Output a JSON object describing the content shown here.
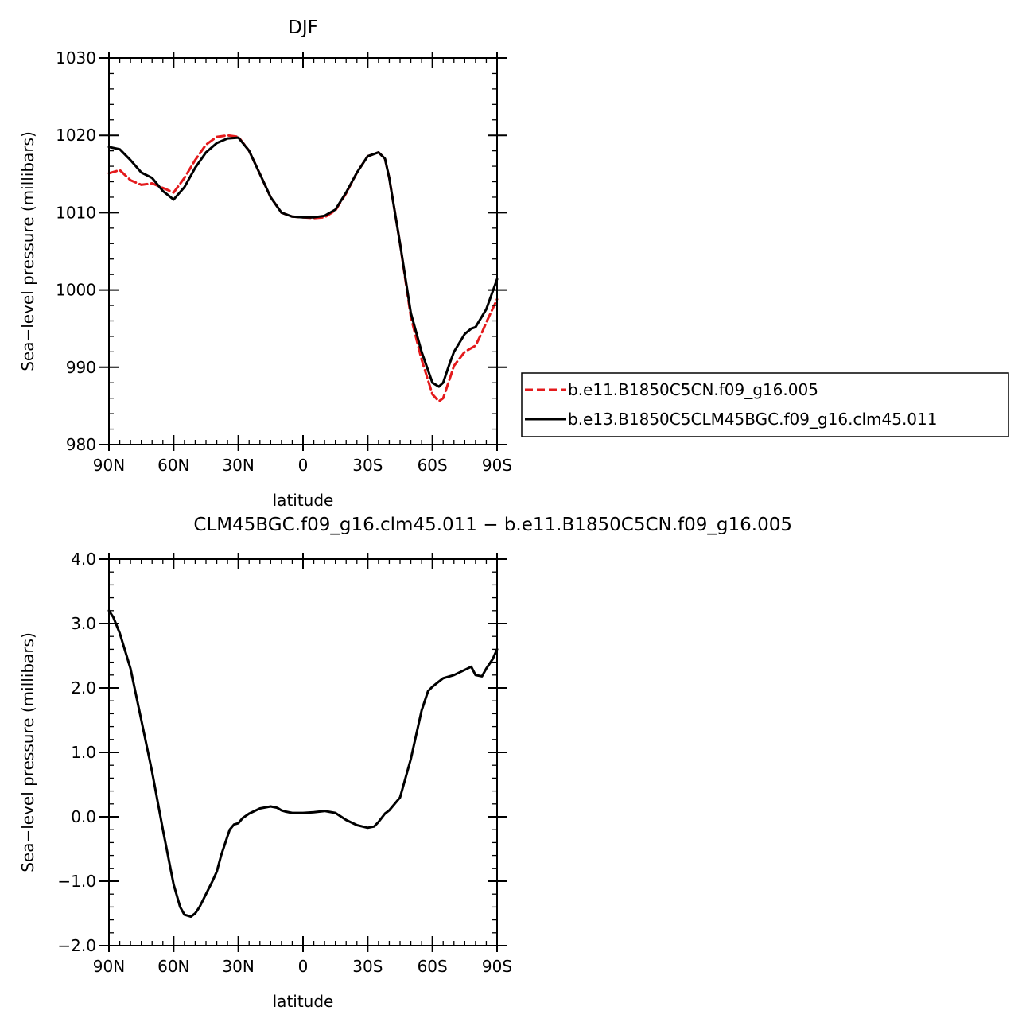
{
  "colors": {
    "series_case": "#e41a1c",
    "series_base": "#000000",
    "axis": "#000000"
  },
  "chart_data": [
    {
      "type": "line",
      "title": "DJF",
      "xlabel": "latitude",
      "ylabel": "Sea−level pressure (millibars)",
      "xlim": [
        90,
        -90
      ],
      "ylim": [
        980,
        1030
      ],
      "xticks": [
        {
          "value": 90,
          "label": "90N"
        },
        {
          "value": 60,
          "label": "60N"
        },
        {
          "value": 30,
          "label": "30N"
        },
        {
          "value": 0,
          "label": "0"
        },
        {
          "value": -30,
          "label": "30S"
        },
        {
          "value": -60,
          "label": "60S"
        },
        {
          "value": -90,
          "label": "90S"
        }
      ],
      "yticks": [
        {
          "value": 1030,
          "label": "1030"
        },
        {
          "value": 1020,
          "label": "1020"
        },
        {
          "value": 1010,
          "label": "1010"
        },
        {
          "value": 1000,
          "label": "1000"
        },
        {
          "value": 990,
          "label": "990"
        },
        {
          "value": 980,
          "label": "980"
        }
      ],
      "legend_position": "right",
      "series": [
        {
          "name": "b.e11.B1850C5CN.f09_g16.005",
          "color": "#e41a1c",
          "dash": "dashed",
          "x": [
            90,
            85,
            80,
            75,
            70,
            65,
            60,
            55,
            50,
            45,
            40,
            35,
            30,
            25,
            20,
            15,
            10,
            5,
            0,
            -5,
            -10,
            -15,
            -20,
            -25,
            -30,
            -35,
            -38,
            -40,
            -45,
            -50,
            -55,
            -60,
            -63,
            -65,
            -68,
            -70,
            -75,
            -80,
            -83,
            -85,
            -90
          ],
          "y": [
            1015.1,
            1015.5,
            1014.2,
            1013.6,
            1013.8,
            1013.2,
            1012.6,
            1014.5,
            1016.8,
            1018.8,
            1019.8,
            1020.0,
            1019.8,
            1018.0,
            1015.0,
            1012.0,
            1010.0,
            1009.5,
            1009.4,
            1009.3,
            1009.4,
            1010.3,
            1012.5,
            1015.2,
            1017.3,
            1017.8,
            1017.0,
            1014.5,
            1006.0,
            996.5,
            991.0,
            986.5,
            985.6,
            986.0,
            988.5,
            990.2,
            992.0,
            992.8,
            994.5,
            995.8,
            998.8
          ]
        },
        {
          "name": "b.e13.B1850C5CLM45BGC.f09_g16.clm45.011",
          "color": "#000000",
          "dash": "solid",
          "x": [
            90,
            85,
            80,
            75,
            70,
            65,
            60,
            55,
            50,
            45,
            40,
            35,
            30,
            25,
            20,
            15,
            10,
            5,
            0,
            -5,
            -10,
            -15,
            -20,
            -25,
            -30,
            -35,
            -38,
            -40,
            -45,
            -50,
            -55,
            -60,
            -63,
            -65,
            -68,
            -70,
            -75,
            -78,
            -80,
            -85,
            -90
          ],
          "y": [
            1018.5,
            1018.2,
            1016.8,
            1015.2,
            1014.5,
            1012.8,
            1011.7,
            1013.3,
            1015.8,
            1017.8,
            1019.0,
            1019.6,
            1019.7,
            1018.0,
            1015.0,
            1012.0,
            1010.0,
            1009.5,
            1009.4,
            1009.4,
            1009.6,
            1010.4,
            1012.6,
            1015.2,
            1017.3,
            1017.8,
            1017.0,
            1014.5,
            1006.0,
            997.0,
            992.0,
            988.0,
            987.5,
            988.0,
            990.5,
            992.0,
            994.3,
            995.0,
            995.2,
            997.5,
            1001.4
          ]
        }
      ]
    },
    {
      "type": "line",
      "title": "CLM45BGC.f09_g16.clm45.011 − b.e11.B1850C5CN.f09_g16.005",
      "xlabel": "latitude",
      "ylabel": "Sea−level pressure (millibars)",
      "xlim": [
        90,
        -90
      ],
      "ylim": [
        -2.0,
        4.0
      ],
      "xticks": [
        {
          "value": 90,
          "label": "90N"
        },
        {
          "value": 60,
          "label": "60N"
        },
        {
          "value": 30,
          "label": "30N"
        },
        {
          "value": 0,
          "label": "0"
        },
        {
          "value": -30,
          "label": "30S"
        },
        {
          "value": -60,
          "label": "60S"
        },
        {
          "value": -90,
          "label": "90S"
        }
      ],
      "yticks": [
        {
          "value": 4.0,
          "label": "4.0"
        },
        {
          "value": 3.0,
          "label": "3.0"
        },
        {
          "value": 2.0,
          "label": "2.0"
        },
        {
          "value": 1.0,
          "label": "1.0"
        },
        {
          "value": 0.0,
          "label": "0.0"
        },
        {
          "value": -1.0,
          "label": "−1.0"
        },
        {
          "value": -2.0,
          "label": "−2.0"
        }
      ],
      "series": [
        {
          "color": "#000000",
          "dash": "solid",
          "x": [
            90,
            88,
            85,
            80,
            75,
            70,
            65,
            60,
            57,
            55,
            52,
            50,
            48,
            45,
            42,
            40,
            38,
            36,
            34,
            32,
            30,
            28,
            25,
            20,
            15,
            12,
            10,
            8,
            5,
            0,
            -5,
            -10,
            -15,
            -20,
            -25,
            -30,
            -33,
            -35,
            -38,
            -40,
            -45,
            -50,
            -55,
            -58,
            -60,
            -63,
            -65,
            -70,
            -75,
            -78,
            -80,
            -83,
            -85,
            -88,
            -90
          ],
          "y": [
            3.2,
            3.1,
            2.85,
            2.3,
            1.5,
            0.7,
            -0.2,
            -1.05,
            -1.4,
            -1.52,
            -1.55,
            -1.5,
            -1.4,
            -1.2,
            -1.0,
            -0.85,
            -0.6,
            -0.4,
            -0.2,
            -0.12,
            -0.1,
            -0.02,
            0.05,
            0.13,
            0.16,
            0.14,
            0.1,
            0.08,
            0.06,
            0.06,
            0.07,
            0.09,
            0.06,
            -0.05,
            -0.13,
            -0.17,
            -0.15,
            -0.08,
            0.05,
            0.1,
            0.3,
            0.9,
            1.65,
            1.95,
            2.02,
            2.1,
            2.15,
            2.2,
            2.28,
            2.33,
            2.2,
            2.18,
            2.3,
            2.45,
            2.6
          ]
        }
      ]
    }
  ]
}
